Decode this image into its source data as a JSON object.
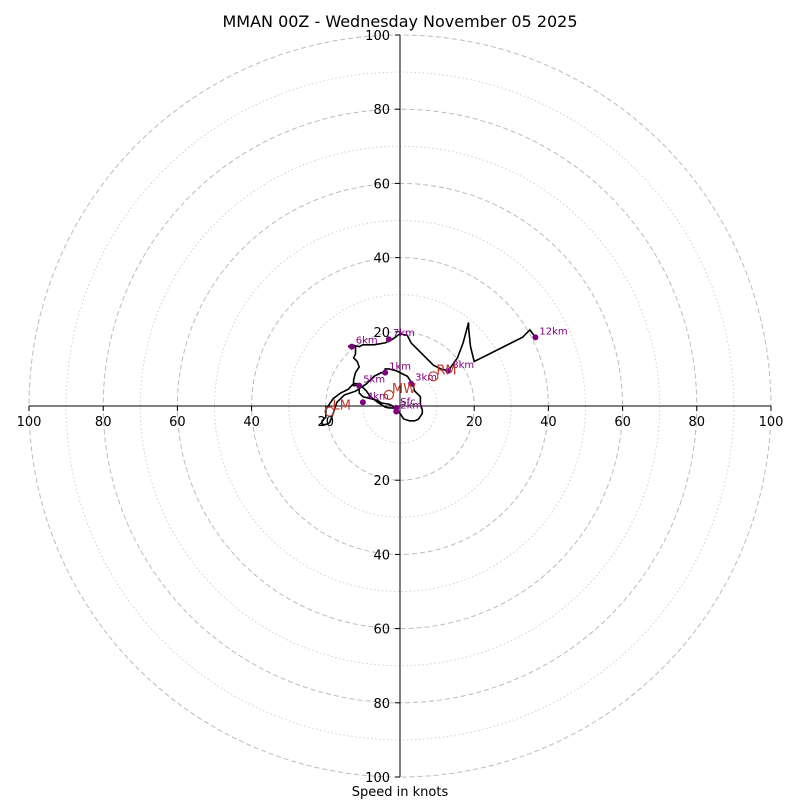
{
  "chart_data": {
    "type": "hodograph",
    "title": "MMAN 00Z - Wednesday November 05 2025",
    "xlabel": "Speed in knots",
    "range": [
      -100,
      100
    ],
    "major_rings": [
      20,
      40,
      60,
      80,
      100
    ],
    "minor_rings": [
      10,
      30,
      50,
      70,
      90
    ],
    "x_ticks": [
      {
        "value": -100,
        "label": "100"
      },
      {
        "value": -80,
        "label": "80"
      },
      {
        "value": -60,
        "label": "60"
      },
      {
        "value": -40,
        "label": "40"
      },
      {
        "value": -20,
        "label": "20"
      },
      {
        "value": 20,
        "label": "20"
      },
      {
        "value": 40,
        "label": "40"
      },
      {
        "value": 60,
        "label": "60"
      },
      {
        "value": 80,
        "label": "80"
      },
      {
        "value": 100,
        "label": "100"
      }
    ],
    "y_ticks": [
      {
        "value": 100,
        "label": "100"
      },
      {
        "value": 80,
        "label": "80"
      },
      {
        "value": 60,
        "label": "60"
      },
      {
        "value": 40,
        "label": "40"
      },
      {
        "value": 20,
        "label": "20"
      },
      {
        "value": -20,
        "label": "20"
      },
      {
        "value": -40,
        "label": "40"
      },
      {
        "value": -60,
        "label": "60"
      },
      {
        "value": -80,
        "label": "80"
      },
      {
        "value": -100,
        "label": "100"
      }
    ],
    "hodograph": [
      [
        -1,
        -0.5
      ],
      [
        -2,
        0
      ],
      [
        -3,
        0.5
      ],
      [
        -5,
        0.8
      ],
      [
        -6,
        1.5
      ],
      [
        -8,
        2
      ],
      [
        -10,
        2.5
      ],
      [
        -11,
        3.5
      ],
      [
        -11,
        5
      ],
      [
        -11.5,
        6
      ],
      [
        -12.5,
        6
      ],
      [
        -14,
        4.5
      ],
      [
        -16,
        3.5
      ],
      [
        -18,
        2
      ],
      [
        -19,
        0.5
      ],
      [
        -20,
        -1
      ],
      [
        -20,
        -3
      ],
      [
        -21,
        -4
      ],
      [
        -21,
        -5
      ],
      [
        -20,
        -5
      ],
      [
        -19,
        -4.5
      ],
      [
        -18,
        -2
      ],
      [
        -17,
        1
      ],
      [
        -15,
        3
      ],
      [
        -12,
        4
      ],
      [
        -9,
        6
      ],
      [
        -7,
        8
      ],
      [
        -5,
        9
      ],
      [
        -4,
        9
      ],
      [
        -4,
        10
      ],
      [
        -3,
        10
      ],
      [
        -1,
        9.5
      ],
      [
        0,
        9
      ],
      [
        1,
        8.5
      ],
      [
        2,
        8
      ],
      [
        3,
        6.5
      ],
      [
        3.5,
        5.5
      ],
      [
        4,
        4
      ],
      [
        4.5,
        3.5
      ],
      [
        5.5,
        2.5
      ],
      [
        5.5,
        0.5
      ],
      [
        6,
        -1
      ],
      [
        6,
        -2
      ],
      [
        5,
        -3.5
      ],
      [
        4,
        -4
      ],
      [
        2.5,
        -4
      ],
      [
        1,
        -3.5
      ],
      [
        0,
        -2
      ],
      [
        -1,
        -1
      ],
      [
        -2,
        -0.5
      ],
      [
        -3,
        -0.5
      ],
      [
        -4,
        -0.3
      ],
      [
        -6,
        1
      ],
      [
        -8,
        2.5
      ],
      [
        -9,
        4
      ],
      [
        -10,
        5
      ],
      [
        -11.5,
        5.5
      ],
      [
        -12.5,
        5.5
      ],
      [
        -12.5,
        7
      ],
      [
        -12,
        9
      ],
      [
        -11,
        10.5
      ],
      [
        -11.5,
        12
      ],
      [
        -12.5,
        13
      ],
      [
        -12,
        14
      ],
      [
        -12,
        15
      ],
      [
        -12,
        16
      ],
      [
        -13,
        16
      ],
      [
        -14,
        16
      ],
      [
        -13,
        16.5
      ],
      [
        -11,
        16
      ],
      [
        -10,
        16.5
      ],
      [
        -7,
        16.5
      ],
      [
        -4,
        17
      ],
      [
        -2,
        18
      ],
      [
        0,
        19.5
      ],
      [
        2,
        19
      ],
      [
        3,
        17
      ],
      [
        5,
        15
      ],
      [
        7,
        13
      ],
      [
        9,
        11
      ],
      [
        11,
        10
      ],
      [
        13,
        9.5
      ],
      [
        15.5,
        13
      ],
      [
        17,
        17
      ],
      [
        18.5,
        22.5
      ],
      [
        18.5,
        21
      ],
      [
        19,
        16
      ],
      [
        20,
        12
      ],
      [
        24,
        14
      ],
      [
        28,
        16
      ],
      [
        33,
        18.5
      ],
      [
        35,
        20.5
      ],
      [
        36.5,
        18.5
      ]
    ],
    "height_markers": [
      {
        "label": "Sfc",
        "u": -1,
        "v": -0.5
      },
      {
        "label": "1km",
        "u": -4,
        "v": 9
      },
      {
        "label": "2km",
        "u": -1,
        "v": -1.5
      },
      {
        "label": "3km",
        "u": 3,
        "v": 6
      },
      {
        "label": "4km",
        "u": -10,
        "v": 1
      },
      {
        "label": "5km",
        "u": -11,
        "v": 5.5
      },
      {
        "label": "6km",
        "u": -13,
        "v": 16
      },
      {
        "label": "7km",
        "u": -3,
        "v": 18
      },
      {
        "label": "8km",
        "u": 13,
        "v": 9.5
      },
      {
        "label": "12km",
        "u": 36.5,
        "v": 18.5
      }
    ],
    "storm_motion": [
      {
        "label": "RM",
        "u": 9,
        "v": 8
      },
      {
        "label": "MW",
        "u": -3,
        "v": 3
      },
      {
        "label": "LM",
        "u": -19,
        "v": -1.5
      }
    ],
    "colors": {
      "marker": "#800080",
      "storm": "#c0392b",
      "line": "#000000"
    }
  }
}
